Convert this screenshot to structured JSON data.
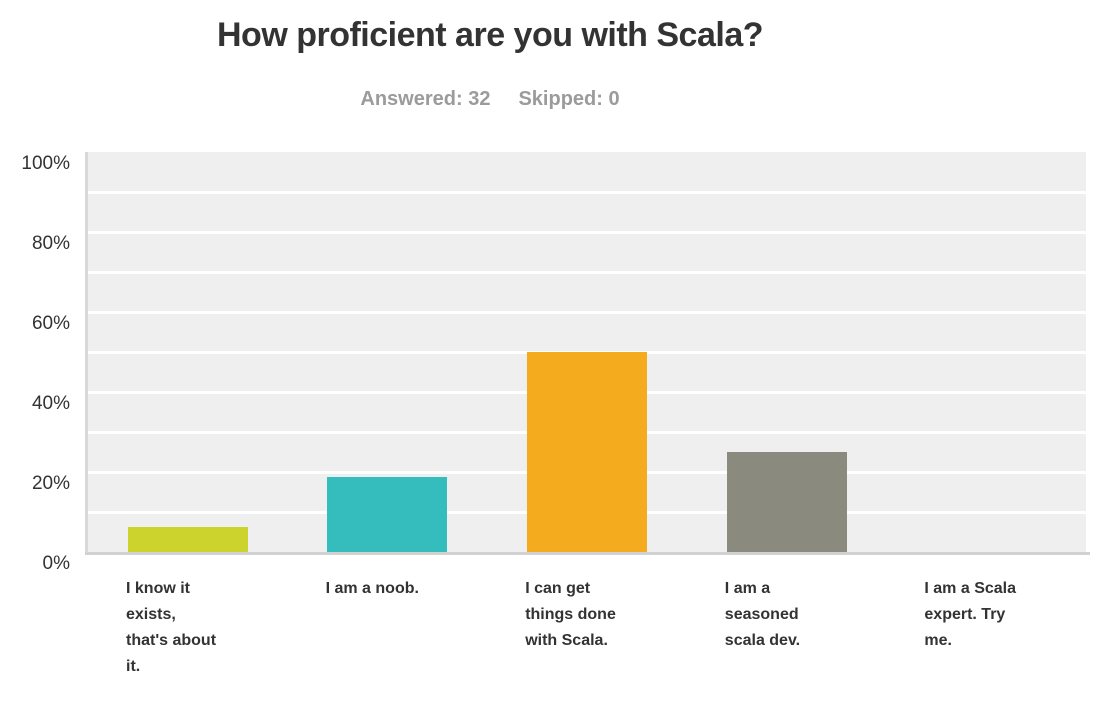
{
  "header": {
    "title": "How proficient are you with Scala?",
    "answered": "Answered: 32",
    "skipped": "Skipped: 0"
  },
  "chart_data": {
    "type": "bar",
    "title": "How proficient are you with Scala?",
    "answered": 32,
    "skipped": 0,
    "categories": [
      "I know it exists, that's about it.",
      "I am a noob.",
      "I can get things done with Scala.",
      "I am a seasoned scala dev.",
      "I am a Scala expert. Try me."
    ],
    "category_label_lines": [
      "I know it\nexists,\nthat's about\nit.",
      "I am a noob.",
      "I can get\nthings done\nwith Scala.",
      "I am a\nseasoned\nscala dev.",
      "I am a Scala\nexpert. Try\nme."
    ],
    "values": [
      6.25,
      18.75,
      50,
      25,
      0
    ],
    "bar_colors": [
      "#ccd32d",
      "#35bdbe",
      "#f5ab1e",
      "#8a8b7e",
      null
    ],
    "y_ticks": [
      "100%",
      "80%",
      "60%",
      "40%",
      "20%",
      "0%"
    ],
    "ylim": [
      0,
      100
    ],
    "ylabel": "",
    "xlabel": "",
    "grid": true,
    "plot_background": "#efefef",
    "gridline_color": "#ffffff",
    "legend": "none"
  }
}
